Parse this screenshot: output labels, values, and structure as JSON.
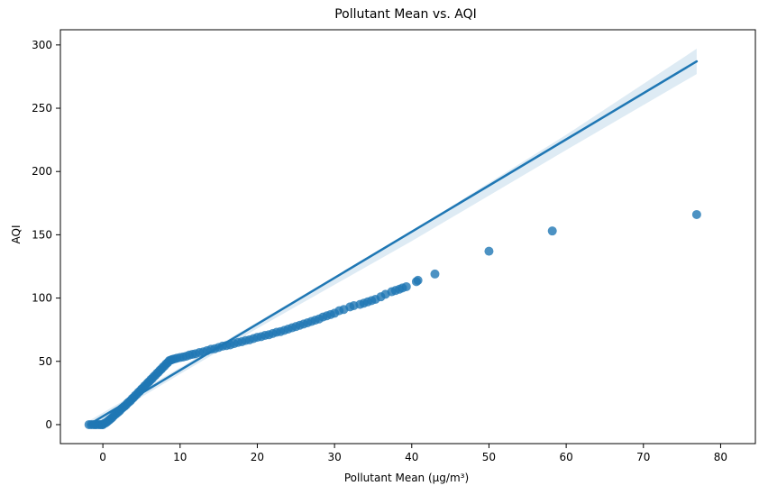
{
  "chart_data": {
    "type": "scatter",
    "title": "Pollutant Mean vs. AQI",
    "xlabel": "Pollutant Mean (µg/m³)",
    "ylabel": "AQI",
    "xlim": [
      -5.5,
      84.5
    ],
    "ylim": [
      -15,
      312
    ],
    "x_ticks": [
      0,
      10,
      20,
      30,
      40,
      50,
      60,
      70,
      80
    ],
    "y_ticks": [
      0,
      50,
      100,
      150,
      200,
      250,
      300
    ],
    "grid": false,
    "legend": "none",
    "series": [
      {
        "kind": "points",
        "color": "#1f77b4",
        "points": [
          [
            -1.8,
            0
          ],
          [
            -1.5,
            0
          ],
          [
            -1.2,
            0
          ],
          [
            -1.0,
            0
          ],
          [
            -0.8,
            0
          ],
          [
            -0.5,
            0
          ],
          [
            -0.3,
            0
          ],
          [
            -0.1,
            0
          ],
          [
            0.0,
            0
          ],
          [
            0.2,
            1
          ],
          [
            0.4,
            1.5
          ],
          [
            0.6,
            2.5
          ],
          [
            0.8,
            3.5
          ],
          [
            1.0,
            4.5
          ],
          [
            1.2,
            5.5
          ],
          [
            1.4,
            7
          ],
          [
            1.6,
            8
          ],
          [
            1.8,
            9
          ],
          [
            2.0,
            10
          ],
          [
            2.2,
            11
          ],
          [
            2.4,
            12.5
          ],
          [
            2.6,
            13.5
          ],
          [
            2.8,
            14.5
          ],
          [
            3.0,
            15.5
          ],
          [
            3.2,
            17
          ],
          [
            3.4,
            18
          ],
          [
            3.6,
            19
          ],
          [
            3.8,
            20.5
          ],
          [
            4.0,
            21.5
          ],
          [
            4.2,
            23
          ],
          [
            4.4,
            24
          ],
          [
            4.6,
            25.5
          ],
          [
            4.8,
            26.5
          ],
          [
            5.0,
            28
          ],
          [
            5.2,
            29
          ],
          [
            5.4,
            30.5
          ],
          [
            5.6,
            31.5
          ],
          [
            5.8,
            33
          ],
          [
            6.0,
            34
          ],
          [
            6.2,
            35.5
          ],
          [
            6.4,
            36.5
          ],
          [
            6.6,
            38
          ],
          [
            6.8,
            39
          ],
          [
            7.0,
            40.5
          ],
          [
            7.2,
            41.5
          ],
          [
            7.4,
            43
          ],
          [
            7.6,
            44
          ],
          [
            7.8,
            45.5
          ],
          [
            8.0,
            46.5
          ],
          [
            8.2,
            48
          ],
          [
            8.4,
            49
          ],
          [
            8.6,
            50.5
          ],
          [
            8.8,
            51
          ],
          [
            9.0,
            51.5
          ],
          [
            9.3,
            52
          ],
          [
            9.6,
            52.5
          ],
          [
            10.0,
            53
          ],
          [
            10.4,
            53.5
          ],
          [
            10.8,
            54
          ],
          [
            11.2,
            55
          ],
          [
            11.6,
            55.5
          ],
          [
            12.0,
            56
          ],
          [
            12.5,
            57
          ],
          [
            13.0,
            57.5
          ],
          [
            13.5,
            58.5
          ],
          [
            14.0,
            59.5
          ],
          [
            14.5,
            60
          ],
          [
            15.0,
            61
          ],
          [
            15.5,
            62
          ],
          [
            16.0,
            62.5
          ],
          [
            16.5,
            63
          ],
          [
            17.0,
            64
          ],
          [
            17.5,
            65
          ],
          [
            18.0,
            65.5
          ],
          [
            18.5,
            66.5
          ],
          [
            19.0,
            67
          ],
          [
            19.5,
            68
          ],
          [
            20.0,
            69
          ],
          [
            20.5,
            69.5
          ],
          [
            21.0,
            70.5
          ],
          [
            21.5,
            71
          ],
          [
            22.0,
            72
          ],
          [
            22.5,
            73
          ],
          [
            23.0,
            73.5
          ],
          [
            23.5,
            74.5
          ],
          [
            24.0,
            75.5
          ],
          [
            24.5,
            76.5
          ],
          [
            25.0,
            77.5
          ],
          [
            25.5,
            78.5
          ],
          [
            26.0,
            79.5
          ],
          [
            26.5,
            80.5
          ],
          [
            27.0,
            81.5
          ],
          [
            27.5,
            82.5
          ],
          [
            28.0,
            83.5
          ],
          [
            28.5,
            85
          ],
          [
            29.0,
            86
          ],
          [
            29.5,
            87
          ],
          [
            30.0,
            88
          ],
          [
            30.6,
            90
          ],
          [
            31.2,
            91
          ],
          [
            32.0,
            93
          ],
          [
            32.5,
            94
          ],
          [
            33.3,
            95
          ],
          [
            33.8,
            96
          ],
          [
            34.3,
            97
          ],
          [
            34.8,
            98
          ],
          [
            35.3,
            99
          ],
          [
            36.0,
            101
          ],
          [
            36.6,
            103
          ],
          [
            37.4,
            105
          ],
          [
            37.9,
            106
          ],
          [
            38.4,
            107
          ],
          [
            38.8,
            108
          ],
          [
            39.3,
            109
          ],
          [
            40.6,
            113
          ],
          [
            40.8,
            114
          ],
          [
            43.0,
            119
          ],
          [
            50.0,
            137
          ],
          [
            58.2,
            153
          ],
          [
            76.9,
            166
          ]
        ]
      },
      {
        "kind": "regression",
        "color": "#1f77b4",
        "line": [
          [
            -1.8,
            0
          ],
          [
            76.9,
            287
          ]
        ],
        "ci_lower": [
          [
            -1.8,
            -3
          ],
          [
            10,
            40
          ],
          [
            20,
            76
          ],
          [
            40,
            145
          ],
          [
            60,
            217
          ],
          [
            76.9,
            277
          ]
        ],
        "ci_upper": [
          [
            -1.8,
            3
          ],
          [
            10,
            45
          ],
          [
            20,
            81
          ],
          [
            40,
            153
          ],
          [
            60,
            229
          ],
          [
            76.9,
            297
          ]
        ]
      }
    ]
  }
}
